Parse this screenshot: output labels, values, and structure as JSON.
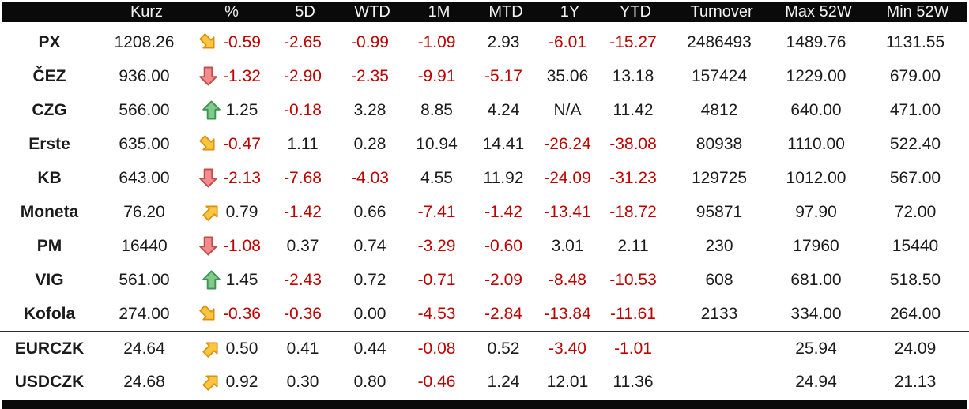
{
  "chart_data": {
    "type": "table",
    "title": "Prague Stock Exchange market overview table",
    "columns": [
      "",
      "Kurz",
      "%",
      "5D",
      "WTD",
      "1M",
      "MTD",
      "1Y",
      "YTD",
      "Turnover",
      "Max 52W",
      "Min 52W"
    ],
    "column_keys": [
      "name",
      "kurz",
      "pct",
      "d5",
      "wtd",
      "m1",
      "mtd",
      "y1",
      "ytd",
      "turnover",
      "max52w",
      "min52w"
    ],
    "rows": [
      {
        "name": "PX",
        "kurz": "1208.26",
        "arrow": "down-right",
        "pct": "-0.59",
        "d5": "-2.65",
        "wtd": "-0.99",
        "m1": "-1.09",
        "mtd": "2.93",
        "y1": "-6.01",
        "ytd": "-15.27",
        "turnover": "2486493",
        "max52w": "1489.76",
        "min52w": "1131.55",
        "group": "stocks"
      },
      {
        "name": "ČEZ",
        "kurz": "936.00",
        "arrow": "down",
        "pct": "-1.32",
        "d5": "-2.90",
        "wtd": "-2.35",
        "m1": "-9.91",
        "mtd": "-5.17",
        "y1": "35.06",
        "ytd": "13.18",
        "turnover": "157424",
        "max52w": "1229.00",
        "min52w": "679.00",
        "group": "stocks"
      },
      {
        "name": "CZG",
        "kurz": "566.00",
        "arrow": "up",
        "pct": "1.25",
        "d5": "-0.18",
        "wtd": "3.28",
        "m1": "8.85",
        "mtd": "4.24",
        "y1": "N/A",
        "ytd": "11.42",
        "turnover": "4812",
        "max52w": "640.00",
        "min52w": "471.00",
        "group": "stocks"
      },
      {
        "name": "Erste",
        "kurz": "635.00",
        "arrow": "down-right",
        "pct": "-0.47",
        "d5": "1.11",
        "wtd": "0.28",
        "m1": "10.94",
        "mtd": "14.41",
        "y1": "-26.24",
        "ytd": "-38.08",
        "turnover": "80938",
        "max52w": "1110.00",
        "min52w": "522.40",
        "group": "stocks"
      },
      {
        "name": "KB",
        "kurz": "643.00",
        "arrow": "down",
        "pct": "-2.13",
        "d5": "-7.68",
        "wtd": "-4.03",
        "m1": "4.55",
        "mtd": "11.92",
        "y1": "-24.09",
        "ytd": "-31.23",
        "turnover": "129725",
        "max52w": "1012.00",
        "min52w": "567.00",
        "group": "stocks"
      },
      {
        "name": "Moneta",
        "kurz": "76.20",
        "arrow": "up-right",
        "pct": "0.79",
        "d5": "-1.42",
        "wtd": "0.66",
        "m1": "-7.41",
        "mtd": "-1.42",
        "y1": "-13.41",
        "ytd": "-18.72",
        "turnover": "95871",
        "max52w": "97.90",
        "min52w": "72.00",
        "group": "stocks"
      },
      {
        "name": "PM",
        "kurz": "16440",
        "arrow": "down",
        "pct": "-1.08",
        "d5": "0.37",
        "wtd": "0.74",
        "m1": "-3.29",
        "mtd": "-0.60",
        "y1": "3.01",
        "ytd": "2.11",
        "turnover": "230",
        "max52w": "17960",
        "min52w": "15440",
        "group": "stocks"
      },
      {
        "name": "VIG",
        "kurz": "561.00",
        "arrow": "up",
        "pct": "1.45",
        "d5": "-2.43",
        "wtd": "0.72",
        "m1": "-0.71",
        "mtd": "-2.09",
        "y1": "-8.48",
        "ytd": "-10.53",
        "turnover": "608",
        "max52w": "681.00",
        "min52w": "518.50",
        "group": "stocks"
      },
      {
        "name": "Kofola",
        "kurz": "274.00",
        "arrow": "down-right",
        "pct": "-0.36",
        "d5": "-0.36",
        "wtd": "0.00",
        "m1": "-4.53",
        "mtd": "-2.84",
        "y1": "-13.84",
        "ytd": "-11.61",
        "turnover": "2133",
        "max52w": "334.00",
        "min52w": "264.00",
        "group": "stocks"
      },
      {
        "name": "EURCZK",
        "kurz": "24.64",
        "arrow": "up-right",
        "pct": "0.50",
        "d5": "0.41",
        "wtd": "0.44",
        "m1": "-0.08",
        "mtd": "0.52",
        "y1": "-3.40",
        "ytd": "-1.01",
        "turnover": "",
        "max52w": "25.94",
        "min52w": "24.09",
        "group": "fx"
      },
      {
        "name": "USDCZK",
        "kurz": "24.68",
        "arrow": "up-right",
        "pct": "0.92",
        "d5": "0.30",
        "wtd": "0.80",
        "m1": "-0.46",
        "mtd": "1.24",
        "y1": "12.01",
        "ytd": "11.36",
        "turnover": "",
        "max52w": "24.94",
        "min52w": "21.13",
        "group": "fx"
      }
    ],
    "layout": {
      "fx_section_separator_before_row": "EURCZK",
      "header_position": "top",
      "bottom_bar": true
    },
    "colors": {
      "negative_text": "#bf0000",
      "default_text": "#1b1b1b",
      "header_bg": "#0a0a0a",
      "header_text": "#f2f2f2",
      "arrow_up_fill": "#82C98C",
      "arrow_up_stroke": "#3B9450",
      "arrow_down_fill": "#F08C8C",
      "arrow_down_stroke": "#C24B4B",
      "arrow_diag_fill": "#FBC441",
      "arrow_diag_stroke": "#DB920B"
    },
    "arrow_legend": {
      "up": "green up arrow (gain)",
      "down": "red down arrow (loss)",
      "up-right": "yellow up-right arrow (small gain)",
      "down-right": "yellow down-right arrow (small loss)"
    }
  }
}
